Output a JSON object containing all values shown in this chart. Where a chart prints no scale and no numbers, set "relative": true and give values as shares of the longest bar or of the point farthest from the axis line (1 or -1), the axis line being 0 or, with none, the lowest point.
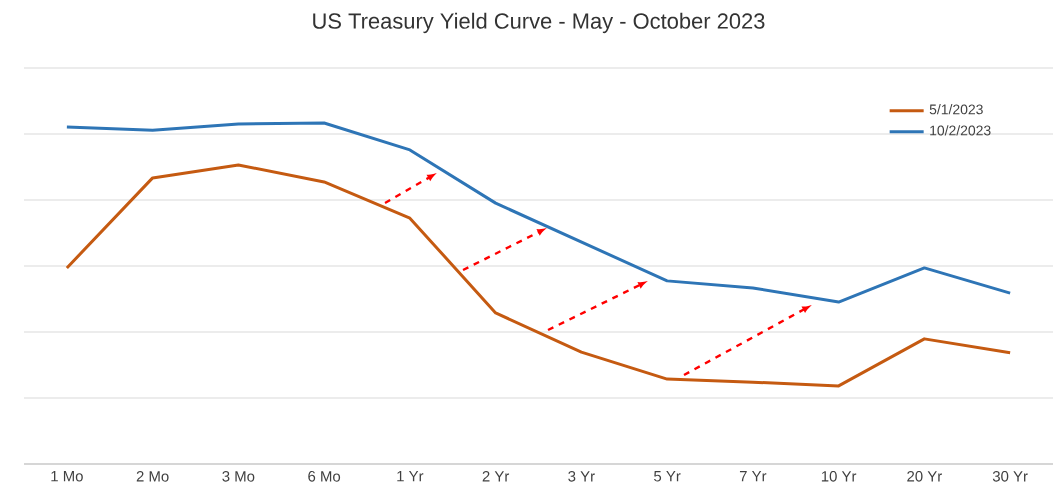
{
  "chart_data": {
    "type": "line",
    "title": "US Treasury Yield Curve - May - October 2023",
    "categories": [
      "1 Mo",
      "2 Mo",
      "3 Mo",
      "6 Mo",
      "1 Yr",
      "2 Yr",
      "3 Yr",
      "5 Yr",
      "7 Yr",
      "10 Yr",
      "20 Yr",
      "30 Yr"
    ],
    "relative": true,
    "series": [
      {
        "name": "5/1/2023",
        "color": "#c55a11",
        "values": [
          0.575,
          0.839,
          0.877,
          0.827,
          0.721,
          0.443,
          0.328,
          0.249,
          0.24,
          0.229,
          0.367,
          0.326
        ]
      },
      {
        "name": "10/2/2023",
        "color": "#2e75b6",
        "values": [
          0.988,
          0.979,
          0.997,
          1.0,
          0.921,
          0.765,
          0.651,
          0.537,
          0.516,
          0.475,
          0.575,
          0.501
        ]
      }
    ],
    "grid": "y",
    "legend": "top right",
    "marker": "none",
    "line_style": "solid"
  }
}
